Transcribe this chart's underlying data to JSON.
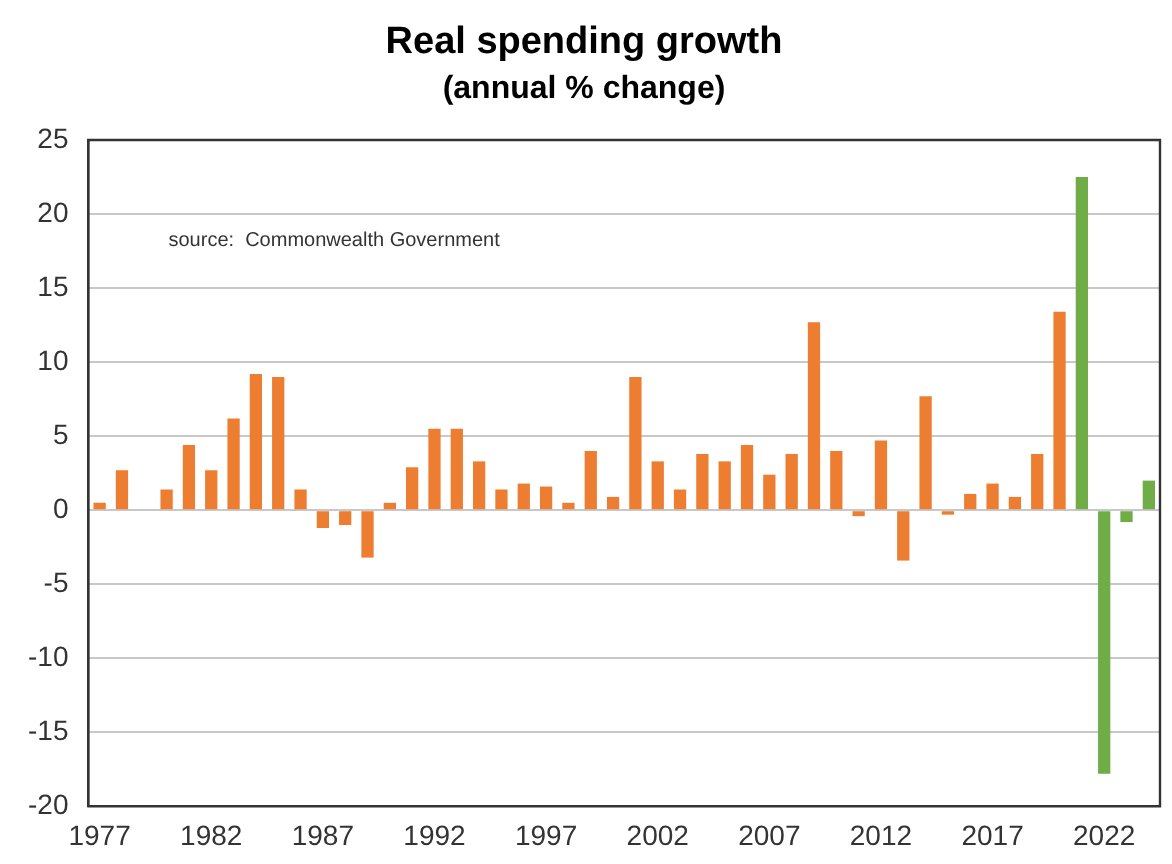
{
  "chart_data": {
    "type": "bar",
    "title": "Real spending growth",
    "subtitle": "(annual % change)",
    "categories": [
      "1977",
      null,
      null,
      null,
      null,
      "1982",
      null,
      null,
      null,
      null,
      "1987",
      null,
      null,
      null,
      null,
      "1992",
      null,
      null,
      null,
      null,
      "1997",
      null,
      null,
      null,
      null,
      "2002",
      null,
      null,
      null,
      null,
      "2007",
      null,
      null,
      null,
      null,
      "2012",
      null,
      null,
      null,
      null,
      "2017",
      null,
      null,
      null,
      null,
      "2022",
      null,
      null
    ],
    "values": [
      0.5,
      2.7,
      0,
      1.4,
      4.4,
      2.7,
      6.2,
      9.2,
      9.0,
      1.4,
      -1.2,
      -1.0,
      -3.2,
      0.5,
      2.9,
      5.5,
      5.5,
      3.3,
      1.4,
      1.8,
      1.6,
      0.5,
      4.0,
      0.9,
      9.0,
      3.3,
      1.4,
      3.8,
      3.3,
      4.4,
      2.4,
      3.8,
      12.7,
      4.0,
      -0.4,
      4.7,
      -3.4,
      7.7,
      -0.3,
      1.1,
      1.8,
      0.9,
      3.8,
      13.4,
      22.5,
      -17.8,
      -0.8,
      2.0
    ],
    "colors": [
      "#ed7d31",
      "#ed7d31",
      "#ed7d31",
      "#ed7d31",
      "#ed7d31",
      "#ed7d31",
      "#ed7d31",
      "#ed7d31",
      "#ed7d31",
      "#ed7d31",
      "#ed7d31",
      "#ed7d31",
      "#ed7d31",
      "#ed7d31",
      "#ed7d31",
      "#ed7d31",
      "#ed7d31",
      "#ed7d31",
      "#ed7d31",
      "#ed7d31",
      "#ed7d31",
      "#ed7d31",
      "#ed7d31",
      "#ed7d31",
      "#ed7d31",
      "#ed7d31",
      "#ed7d31",
      "#ed7d31",
      "#ed7d31",
      "#ed7d31",
      "#ed7d31",
      "#ed7d31",
      "#ed7d31",
      "#ed7d31",
      "#ed7d31",
      "#ed7d31",
      "#ed7d31",
      "#ed7d31",
      "#ed7d31",
      "#ed7d31",
      "#ed7d31",
      "#ed7d31",
      "#ed7d31",
      "#ed7d31",
      "#70ad47",
      "#70ad47",
      "#70ad47",
      "#70ad47"
    ],
    "ylim": [
      -20,
      25
    ],
    "yticks": [
      -20,
      -15,
      -10,
      -5,
      0,
      5,
      10,
      15,
      20,
      25
    ],
    "grid": "y",
    "legend": false,
    "annotations": [
      "source:  Commonwealth Government"
    ]
  }
}
